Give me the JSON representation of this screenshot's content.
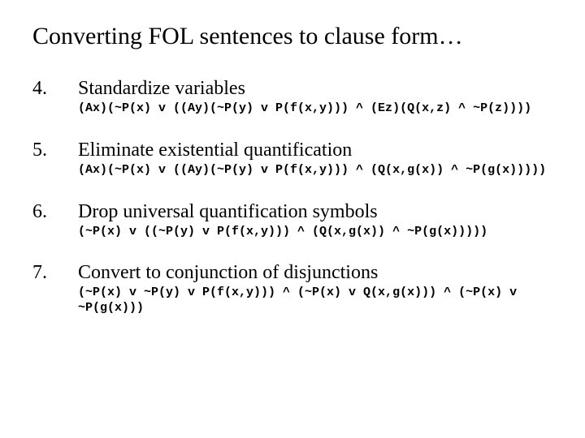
{
  "title": "Converting FOL sentences to clause form…",
  "steps": [
    {
      "num": "4.",
      "heading": "Standardize variables",
      "code": "(Ax)(~P(x) v ((Ay)(~P(y) v P(f(x,y))) ^ (Ez)(Q(x,z) ^ ~P(z))))"
    },
    {
      "num": "5.",
      "heading": "Eliminate existential quantification",
      "code": "(Ax)(~P(x) v ((Ay)(~P(y) v P(f(x,y))) ^ (Q(x,g(x)) ^ ~P(g(x)))))"
    },
    {
      "num": "6.",
      "heading": "Drop universal quantification symbols",
      "code": "(~P(x) v ((~P(y) v P(f(x,y))) ^ (Q(x,g(x)) ^ ~P(g(x)))))"
    },
    {
      "num": "7.",
      "heading": "Convert to conjunction of disjunctions",
      "code": "(~P(x) v ~P(y) v P(f(x,y))) ^ (~P(x) v Q(x,g(x))) ^ (~P(x) v ~P(g(x)))"
    }
  ]
}
